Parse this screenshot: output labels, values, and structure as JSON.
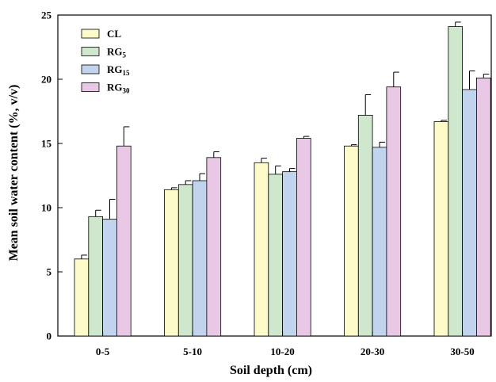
{
  "chart_data": {
    "type": "bar",
    "title": "",
    "xlabel": "Soil depth (cm)",
    "ylabel": "Mean soil water content (%, v/v)",
    "ylim": [
      0,
      25
    ],
    "yticks": [
      0,
      5,
      10,
      15,
      20,
      25
    ],
    "categories": [
      "0-5",
      "5-10",
      "10-20",
      "20-30",
      "30-50"
    ],
    "legend_position": "top-left",
    "grid": false,
    "series": [
      {
        "name": "CL",
        "name_main": "CL",
        "name_sub": "",
        "color": "#fdfbc9",
        "values": [
          6.0,
          11.4,
          13.5,
          14.8,
          16.7
        ],
        "errors": [
          0.3,
          0.15,
          0.35,
          0.1,
          0.1
        ]
      },
      {
        "name": "RG5",
        "name_main": "RG",
        "name_sub": "5",
        "color": "#cfe7cd",
        "values": [
          9.3,
          11.8,
          12.6,
          17.2,
          24.1
        ],
        "errors": [
          0.5,
          0.3,
          0.65,
          1.6,
          0.35
        ]
      },
      {
        "name": "RG15",
        "name_main": "RG",
        "name_sub": "15",
        "color": "#c2d3ee",
        "values": [
          9.1,
          12.1,
          12.8,
          14.7,
          19.2
        ],
        "errors": [
          1.55,
          0.55,
          0.25,
          0.4,
          1.45
        ]
      },
      {
        "name": "RG30",
        "name_main": "RG",
        "name_sub": "30",
        "color": "#e8c8e4",
        "values": [
          14.8,
          13.9,
          15.4,
          19.4,
          20.1
        ],
        "errors": [
          1.5,
          0.45,
          0.15,
          1.15,
          0.3
        ]
      }
    ]
  }
}
